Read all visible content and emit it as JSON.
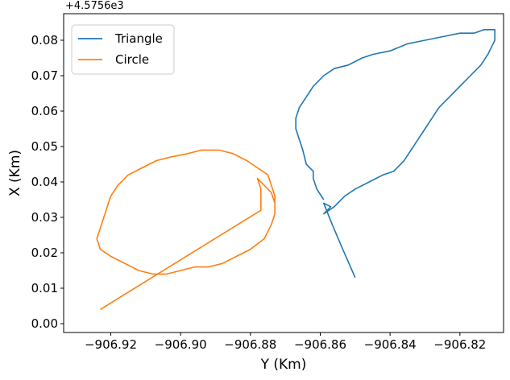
{
  "chart_data": {
    "type": "line",
    "xlabel": "Y (Km)",
    "ylabel": "X (Km)",
    "y_offset_text": "+4.5756e3",
    "xlim": [
      -906.9335,
      -906.8075
    ],
    "ylim": [
      -0.0025,
      0.0875
    ],
    "x_ticks": [
      -906.92,
      -906.9,
      -906.88,
      -906.86,
      -906.84,
      -906.82
    ],
    "x_tick_labels": [
      "−906.92",
      "−906.90",
      "−906.88",
      "−906.86",
      "−906.84",
      "−906.82"
    ],
    "y_ticks": [
      0.0,
      0.01,
      0.02,
      0.03,
      0.04,
      0.05,
      0.06,
      0.07,
      0.08
    ],
    "y_tick_labels": [
      "0.00",
      "0.01",
      "0.02",
      "0.03",
      "0.04",
      "0.05",
      "0.06",
      "0.07",
      "0.08"
    ],
    "legend_position": "upper-left",
    "grid": false,
    "series": [
      {
        "name": "Triangle",
        "color": "#1f77b4",
        "points": [
          [
            -906.85,
            0.013
          ],
          [
            -906.854,
            0.022
          ],
          [
            -906.857,
            0.029
          ],
          [
            -906.859,
            0.034
          ],
          [
            -906.857,
            0.033
          ],
          [
            -906.859,
            0.031
          ],
          [
            -906.856,
            0.033
          ],
          [
            -906.853,
            0.036
          ],
          [
            -906.85,
            0.038
          ],
          [
            -906.846,
            0.04
          ],
          [
            -906.842,
            0.042
          ],
          [
            -906.839,
            0.043
          ],
          [
            -906.836,
            0.046
          ],
          [
            -906.834,
            0.049
          ],
          [
            -906.832,
            0.052
          ],
          [
            -906.83,
            0.055
          ],
          [
            -906.828,
            0.058
          ],
          [
            -906.826,
            0.061
          ],
          [
            -906.823,
            0.064
          ],
          [
            -906.82,
            0.067
          ],
          [
            -906.817,
            0.07
          ],
          [
            -906.814,
            0.073
          ],
          [
            -906.812,
            0.076
          ],
          [
            -906.811,
            0.078
          ],
          [
            -906.81,
            0.08
          ],
          [
            -906.81,
            0.083
          ],
          [
            -906.813,
            0.083
          ],
          [
            -906.816,
            0.082
          ],
          [
            -906.82,
            0.082
          ],
          [
            -906.825,
            0.081
          ],
          [
            -906.83,
            0.08
          ],
          [
            -906.835,
            0.079
          ],
          [
            -906.84,
            0.077
          ],
          [
            -906.845,
            0.076
          ],
          [
            -906.848,
            0.075
          ],
          [
            -906.852,
            0.073
          ],
          [
            -906.856,
            0.072
          ],
          [
            -906.859,
            0.07
          ],
          [
            -906.862,
            0.067
          ],
          [
            -906.864,
            0.064
          ],
          [
            -906.866,
            0.061
          ],
          [
            -906.867,
            0.058
          ],
          [
            -906.867,
            0.055
          ],
          [
            -906.866,
            0.052
          ],
          [
            -906.865,
            0.049
          ],
          [
            -906.864,
            0.045
          ],
          [
            -906.862,
            0.043
          ],
          [
            -906.862,
            0.041
          ],
          [
            -906.861,
            0.038
          ],
          [
            -906.859,
            0.035
          ]
        ]
      },
      {
        "name": "Circle",
        "color": "#ff7f0e",
        "points": [
          [
            -906.923,
            0.004
          ],
          [
            -906.877,
            0.032
          ],
          [
            -906.877,
            0.038
          ],
          [
            -906.878,
            0.041
          ],
          [
            -906.876,
            0.039
          ],
          [
            -906.874,
            0.037
          ],
          [
            -906.873,
            0.034
          ],
          [
            -906.873,
            0.031
          ],
          [
            -906.874,
            0.028
          ],
          [
            -906.876,
            0.024
          ],
          [
            -906.88,
            0.021
          ],
          [
            -906.884,
            0.019
          ],
          [
            -906.888,
            0.017
          ],
          [
            -906.892,
            0.016
          ],
          [
            -906.896,
            0.016
          ],
          [
            -906.9,
            0.015
          ],
          [
            -906.904,
            0.014
          ],
          [
            -906.908,
            0.014
          ],
          [
            -906.912,
            0.015
          ],
          [
            -906.916,
            0.017
          ],
          [
            -906.92,
            0.019
          ],
          [
            -906.923,
            0.021
          ],
          [
            -906.924,
            0.024
          ],
          [
            -906.923,
            0.027
          ],
          [
            -906.922,
            0.03
          ],
          [
            -906.921,
            0.033
          ],
          [
            -906.92,
            0.036
          ],
          [
            -906.918,
            0.039
          ],
          [
            -906.915,
            0.042
          ],
          [
            -906.911,
            0.044
          ],
          [
            -906.907,
            0.046
          ],
          [
            -906.903,
            0.047
          ],
          [
            -906.898,
            0.048
          ],
          [
            -906.894,
            0.049
          ],
          [
            -906.889,
            0.049
          ],
          [
            -906.885,
            0.048
          ],
          [
            -906.881,
            0.046
          ],
          [
            -906.878,
            0.044
          ],
          [
            -906.875,
            0.042
          ],
          [
            -906.874,
            0.039
          ],
          [
            -906.873,
            0.036
          ],
          [
            -906.873,
            0.033
          ]
        ]
      }
    ]
  }
}
